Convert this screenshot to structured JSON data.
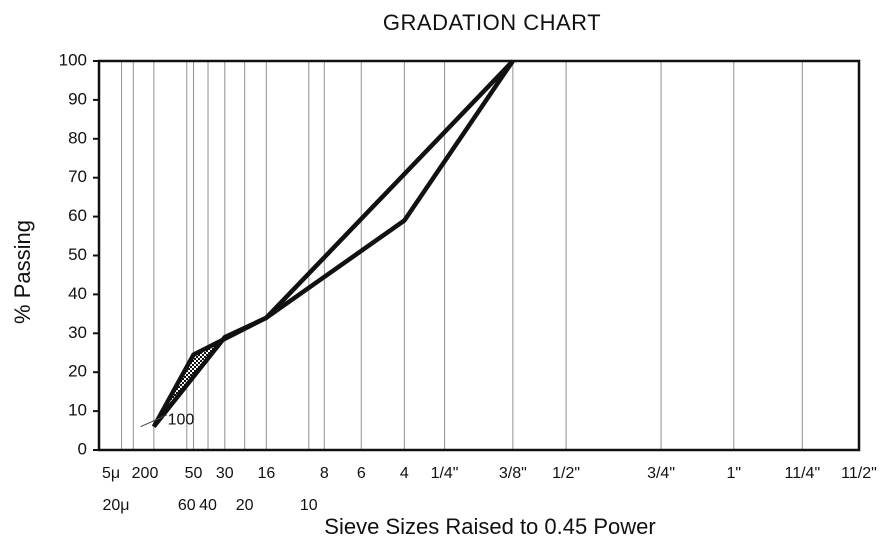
{
  "chart_data": {
    "type": "line",
    "title": "GRADATION CHART",
    "xlabel": "Sieve Sizes Raised to 0.45 Power",
    "ylabel": "% Passing",
    "ylim": [
      0,
      100
    ],
    "yticks": [
      0,
      10,
      20,
      30,
      40,
      50,
      60,
      70,
      80,
      90,
      100
    ],
    "grid": "vertical",
    "x_axis_note": "sieve opening (mm) raised to 0.45 power",
    "x_sieves_top": [
      {
        "label": "5μ",
        "mm": 0.005
      },
      {
        "label": "200",
        "mm": 0.075
      },
      {
        "label": "50",
        "mm": 0.3
      },
      {
        "label": "30",
        "mm": 0.6
      },
      {
        "label": "16",
        "mm": 1.18
      },
      {
        "label": "8",
        "mm": 2.36
      },
      {
        "label": "6",
        "mm": 3.35
      },
      {
        "label": "4",
        "mm": 4.75
      },
      {
        "label": "1/4\"",
        "mm": 6.3
      },
      {
        "label": "3/8\"",
        "mm": 9.5
      },
      {
        "label": "1/2\"",
        "mm": 12.5
      },
      {
        "label": "3/4\"",
        "mm": 19.0
      },
      {
        "label": "1\"",
        "mm": 25.0
      },
      {
        "label": "11/4\"",
        "mm": 31.5
      },
      {
        "label": "11/2\"",
        "mm": 37.5
      }
    ],
    "x_sieves_bottom": [
      {
        "label": "20μ",
        "mm": 0.02
      },
      {
        "label": "60",
        "mm": 0.25
      },
      {
        "label": "40",
        "mm": 0.425
      },
      {
        "label": "20",
        "mm": 0.85
      },
      {
        "label": "10",
        "mm": 2.0
      }
    ],
    "annotations": [
      {
        "label": "100",
        "mm": 0.15
      }
    ],
    "series": [
      {
        "x_mm": [
          0.075,
          0.6,
          1.18,
          9.5
        ],
        "y": [
          6,
          29,
          34,
          100
        ]
      },
      {
        "x_mm": [
          0.075,
          0.3,
          1.18,
          4.75,
          9.5
        ],
        "y": [
          6,
          24.5,
          34,
          59,
          100
        ]
      }
    ]
  }
}
